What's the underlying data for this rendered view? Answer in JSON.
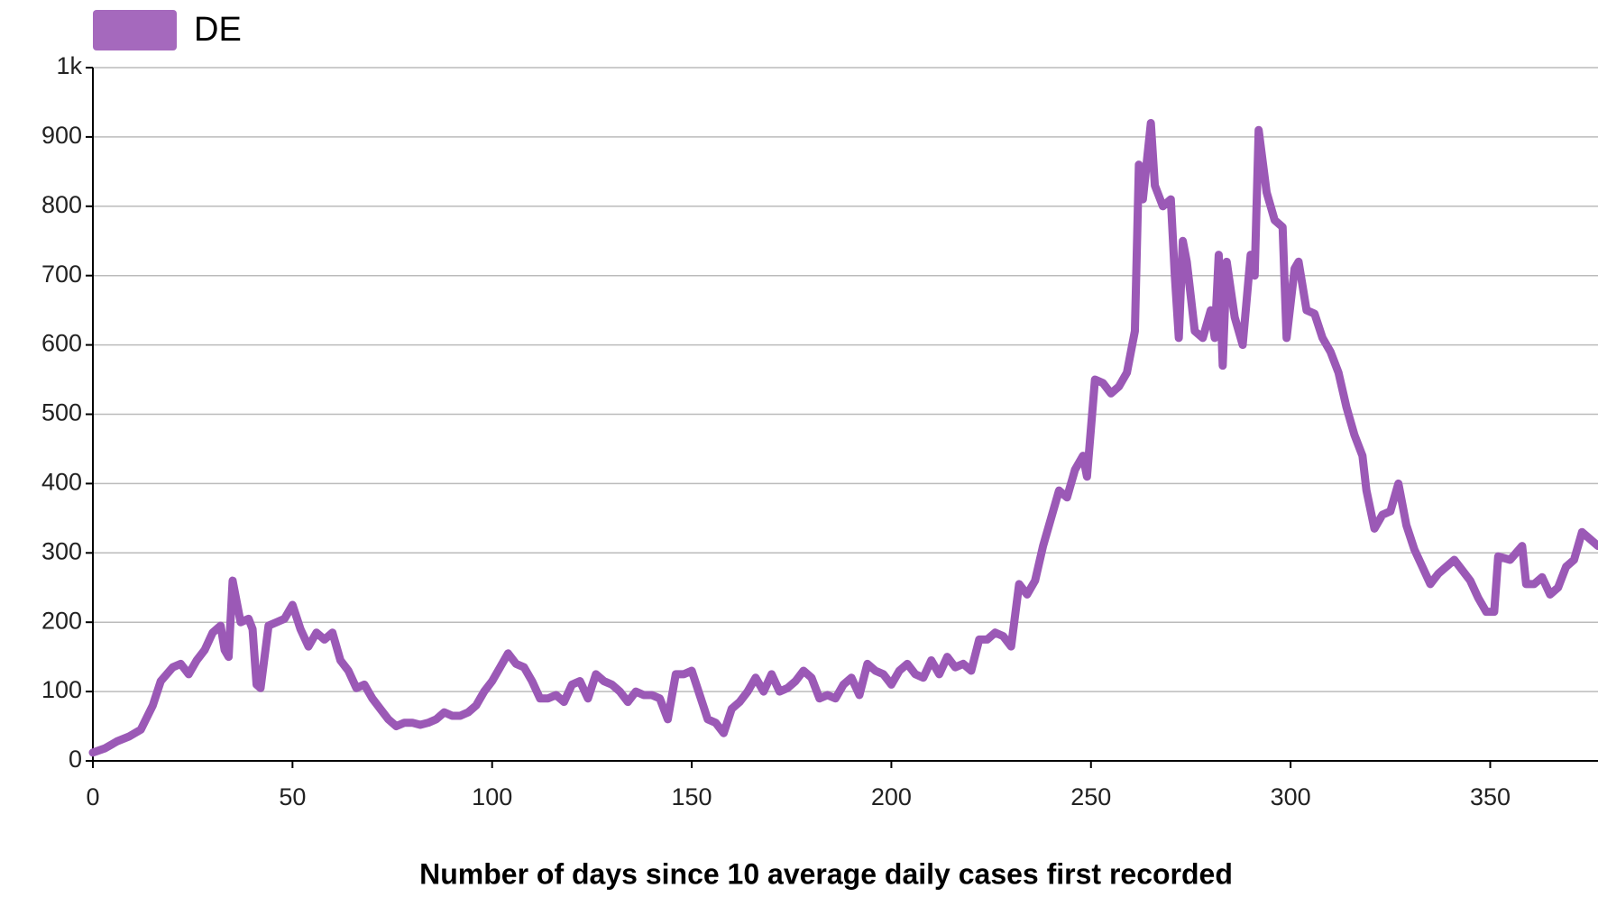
{
  "chart_data": {
    "type": "line",
    "xlabel": "Number of days since 10 average daily cases first recorded",
    "x": [
      0,
      3,
      6,
      9,
      12,
      15,
      17,
      20,
      22,
      24,
      26,
      28,
      30,
      32,
      33,
      34,
      35,
      37,
      39,
      40,
      41,
      42,
      44,
      46,
      48,
      50,
      52,
      54,
      56,
      58,
      60,
      62,
      64,
      66,
      68,
      70,
      72,
      74,
      76,
      78,
      80,
      82,
      84,
      86,
      88,
      90,
      92,
      94,
      96,
      98,
      100,
      102,
      104,
      106,
      108,
      110,
      112,
      114,
      116,
      118,
      120,
      122,
      124,
      126,
      128,
      130,
      132,
      134,
      136,
      138,
      140,
      142,
      144,
      146,
      148,
      150,
      152,
      154,
      156,
      158,
      160,
      162,
      164,
      166,
      168,
      170,
      172,
      174,
      176,
      178,
      180,
      182,
      184,
      186,
      188,
      190,
      192,
      194,
      196,
      198,
      200,
      202,
      204,
      206,
      208,
      210,
      212,
      214,
      216,
      218,
      220,
      222,
      224,
      226,
      228,
      230,
      232,
      234,
      236,
      238,
      240,
      242,
      244,
      246,
      248,
      249,
      251,
      253,
      255,
      257,
      259,
      261,
      262,
      263,
      265,
      266,
      268,
      270,
      271,
      272,
      273,
      274,
      276,
      278,
      280,
      281,
      282,
      283,
      284,
      286,
      288,
      290,
      291,
      292,
      294,
      296,
      298,
      299,
      301,
      302,
      304,
      306,
      308,
      310,
      312,
      314,
      316,
      318,
      319,
      321,
      323,
      325,
      327,
      329,
      331,
      333,
      335,
      337,
      339,
      341,
      343,
      345,
      347,
      349,
      351,
      352,
      355,
      358,
      359,
      361,
      363,
      365,
      367,
      369,
      371,
      373,
      375,
      377
    ],
    "series": [
      {
        "name": "DE",
        "color": "#9b59b6",
        "values": [
          12,
          18,
          28,
          35,
          45,
          80,
          115,
          135,
          140,
          125,
          145,
          160,
          185,
          195,
          160,
          150,
          260,
          200,
          205,
          190,
          110,
          105,
          195,
          200,
          205,
          225,
          190,
          165,
          185,
          175,
          185,
          145,
          130,
          105,
          110,
          90,
          75,
          60,
          50,
          55,
          55,
          52,
          55,
          60,
          70,
          65,
          65,
          70,
          80,
          100,
          115,
          135,
          155,
          140,
          135,
          115,
          90,
          90,
          95,
          85,
          110,
          115,
          90,
          125,
          115,
          110,
          100,
          85,
          100,
          95,
          95,
          90,
          60,
          125,
          125,
          130,
          95,
          60,
          55,
          40,
          75,
          85,
          100,
          120,
          100,
          125,
          100,
          105,
          115,
          130,
          120,
          90,
          95,
          90,
          110,
          120,
          95,
          140,
          130,
          125,
          110,
          130,
          140,
          125,
          120,
          145,
          125,
          150,
          135,
          140,
          130,
          175,
          175,
          185,
          180,
          165,
          255,
          240,
          260,
          310,
          350,
          390,
          380,
          420,
          440,
          410,
          550,
          545,
          530,
          540,
          560,
          620,
          860,
          810,
          920,
          830,
          800,
          810,
          700,
          610,
          750,
          720,
          620,
          610,
          650,
          610,
          730,
          570,
          720,
          640,
          600,
          730,
          700,
          910,
          820,
          780,
          770,
          610,
          710,
          720,
          650,
          645,
          610,
          590,
          560,
          510,
          470,
          440,
          390,
          335,
          355,
          360,
          400,
          340,
          305,
          280,
          255,
          270,
          280,
          290,
          275,
          260,
          235,
          215,
          215,
          295,
          290,
          310,
          255,
          255,
          265,
          240,
          250,
          280,
          290,
          330,
          320,
          310
        ]
      }
    ],
    "xlim": [
      0,
      377
    ],
    "xticks": [
      0,
      50,
      100,
      150,
      200,
      250,
      300,
      350
    ],
    "ylim": [
      0,
      1000
    ],
    "yticks": [
      0,
      100,
      200,
      300,
      400,
      500,
      600,
      700,
      800,
      900,
      {
        "value": 1000,
        "label": "1k"
      }
    ],
    "grid": true,
    "legend": "top-left"
  }
}
